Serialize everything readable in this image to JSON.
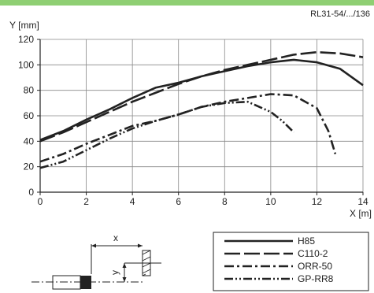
{
  "figure_id": "RL31-54/.../136",
  "colors": {
    "accent_bar": "#8fcf73",
    "ink": "#222222"
  },
  "chart_data": {
    "type": "line",
    "xlabel": "X [m]",
    "ylabel": "Y [mm]",
    "xlim": [
      0,
      14
    ],
    "ylim": [
      0,
      120
    ],
    "x_ticks": [
      0,
      2,
      4,
      6,
      8,
      10,
      12,
      14
    ],
    "y_ticks": [
      0,
      20,
      40,
      60,
      80,
      100,
      120
    ],
    "grid": true,
    "legend_position": "bottom-right",
    "series": [
      {
        "name": "H85",
        "dash": "solid",
        "points": [
          [
            0,
            41
          ],
          [
            1,
            48
          ],
          [
            2,
            57
          ],
          [
            3,
            65
          ],
          [
            4,
            74
          ],
          [
            5,
            82
          ],
          [
            6,
            86
          ],
          [
            7,
            91
          ],
          [
            8,
            95
          ],
          [
            9,
            99
          ],
          [
            10,
            102
          ],
          [
            11,
            104
          ],
          [
            12,
            102
          ],
          [
            13,
            97
          ],
          [
            14,
            84
          ]
        ]
      },
      {
        "name": "C110-2",
        "dash": "long-dash",
        "points": [
          [
            0,
            40
          ],
          [
            1,
            47
          ],
          [
            2,
            55
          ],
          [
            3,
            63
          ],
          [
            4,
            71
          ],
          [
            5,
            78
          ],
          [
            6,
            85
          ],
          [
            7,
            91
          ],
          [
            8,
            96
          ],
          [
            9,
            100
          ],
          [
            10,
            104
          ],
          [
            11,
            108
          ],
          [
            12,
            110
          ],
          [
            13,
            109
          ],
          [
            14,
            106
          ]
        ]
      },
      {
        "name": "ORR-50",
        "dash": "dash-dot",
        "points": [
          [
            0,
            24
          ],
          [
            1,
            30
          ],
          [
            2,
            38
          ],
          [
            3,
            45
          ],
          [
            4,
            52
          ],
          [
            5,
            56
          ],
          [
            6,
            61
          ],
          [
            7,
            67
          ],
          [
            8,
            71
          ],
          [
            9,
            74
          ],
          [
            10,
            77
          ],
          [
            11,
            76
          ],
          [
            12,
            66
          ],
          [
            12.5,
            48
          ],
          [
            12.8,
            30
          ]
        ]
      },
      {
        "name": "GP-RR8",
        "dash": "dash-dot-dot",
        "points": [
          [
            0,
            19
          ],
          [
            1,
            24
          ],
          [
            2,
            33
          ],
          [
            3,
            42
          ],
          [
            4,
            50
          ],
          [
            5,
            56
          ],
          [
            6,
            61
          ],
          [
            7,
            67
          ],
          [
            8,
            70
          ],
          [
            9,
            71
          ],
          [
            10,
            63
          ],
          [
            10.5,
            56
          ],
          [
            11,
            47
          ]
        ]
      }
    ]
  },
  "diagram": {
    "x_label": "x",
    "y_label": "y"
  }
}
